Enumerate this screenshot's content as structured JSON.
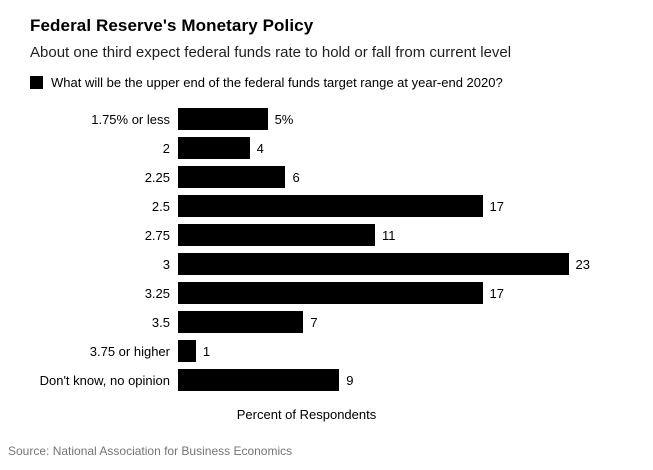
{
  "header": {
    "title": "Federal Reserve's Monetary Policy",
    "subtitle": "About one third expect federal funds rate to hold or fall from current level",
    "legend_label": "What will be the upper end of the federal funds target range at year-end 2020?"
  },
  "chart_data": {
    "type": "bar",
    "orientation": "horizontal",
    "categories": [
      "1.75% or less",
      "2",
      "2.25",
      "2.5",
      "2.75",
      "3",
      "3.25",
      "3.5",
      "3.75 or higher",
      "Don't know, no opinion"
    ],
    "values": [
      5,
      4,
      6,
      17,
      11,
      23,
      17,
      7,
      1,
      9
    ],
    "value_labels": [
      "5%",
      "4",
      "6",
      "17",
      "11",
      "23",
      "17",
      "7",
      "1",
      "9"
    ],
    "title": "Federal Reserve's Monetary Policy",
    "xlabel": "Percent of Respondents",
    "ylabel": "",
    "xlim": [
      0,
      23
    ],
    "grid": false,
    "legend_position": "top",
    "bar_color": "#000000"
  },
  "footer": {
    "source": "Source: National Association for Business Economics"
  }
}
